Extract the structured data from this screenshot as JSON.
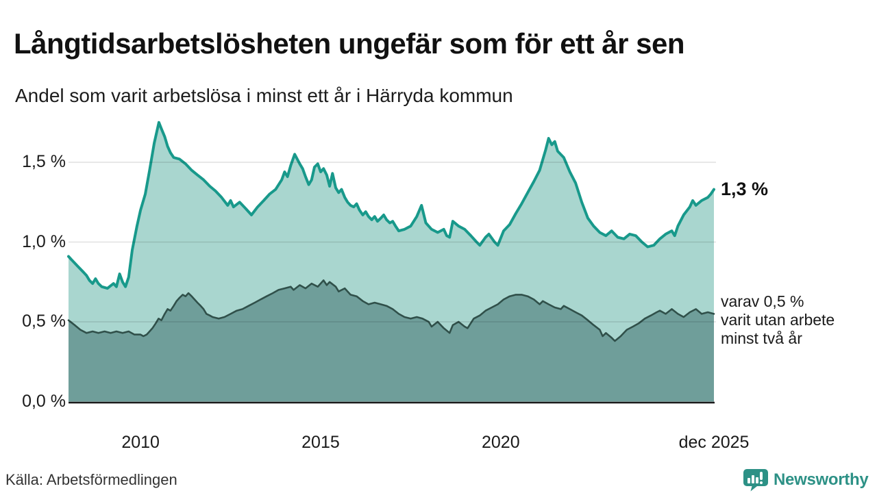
{
  "header": {
    "title": "Långtidsarbetslösheten ungefär som för ett år sen",
    "subtitle": "Andel som varit arbetslösa i minst ett år i Härryda kommun"
  },
  "annotations": {
    "latest_value": "1,3 %",
    "secondary_lines": [
      "varav 0,5 %",
      "varit utan arbete",
      "minst två år"
    ]
  },
  "footer": {
    "source": "Källa: Arbetsförmedlingen",
    "brand": "Newsworthy",
    "brand_icon": "newsworthy-speech-bubble-bar-chart-icon"
  },
  "colors": {
    "series1_line": "#18998b",
    "series1_fill": "#a9d6cf",
    "series2_line": "#30504a",
    "series2_fill": "#6f9e9a",
    "gridline": "rgba(0,0,0,0.12)",
    "baseline": "#1a1a1a",
    "brand_teal": "#2d9186",
    "text": "#111111"
  },
  "chart_data": {
    "type": "area",
    "title": "Långtidsarbetslösheten ungefär som för ett år sen",
    "subtitle": "Andel som varit arbetslösa i minst ett år i Härryda kommun",
    "unit": "%",
    "grid": "horizontal",
    "legend_position": "right-edge-annotations",
    "x_axis": {
      "range": [
        2008.0,
        2025.92
      ],
      "ticks": [
        {
          "year": 2010,
          "label": "2010"
        },
        {
          "year": 2015,
          "label": "2015"
        },
        {
          "year": 2020,
          "label": "2020"
        },
        {
          "year": 2025.92,
          "label": "dec 2025"
        }
      ]
    },
    "y_axis": {
      "range": [
        0,
        1.8
      ],
      "gridlines": [
        0.5,
        1.0,
        1.5
      ],
      "ticks": [
        {
          "value": 1.5,
          "label": "1,5 %"
        },
        {
          "value": 1.0,
          "label": "1,0 %"
        },
        {
          "value": 0.5,
          "label": "0,5 %"
        },
        {
          "value": 0.0,
          "label": "0,0 %"
        }
      ]
    },
    "series": [
      {
        "name": "Andel arbetslösa minst ett år",
        "end_label": "1,3 %",
        "color": "#18998b",
        "fill": "#a9d6cf",
        "points": [
          [
            2008.0,
            0.91
          ],
          [
            2008.08,
            0.89
          ],
          [
            2008.25,
            0.85
          ],
          [
            2008.42,
            0.81
          ],
          [
            2008.5,
            0.79
          ],
          [
            2008.58,
            0.76
          ],
          [
            2008.67,
            0.74
          ],
          [
            2008.75,
            0.77
          ],
          [
            2008.83,
            0.74
          ],
          [
            2008.92,
            0.72
          ],
          [
            2009.08,
            0.71
          ],
          [
            2009.25,
            0.74
          ],
          [
            2009.33,
            0.72
          ],
          [
            2009.42,
            0.8
          ],
          [
            2009.5,
            0.75
          ],
          [
            2009.58,
            0.72
          ],
          [
            2009.67,
            0.78
          ],
          [
            2009.77,
            0.95
          ],
          [
            2009.9,
            1.1
          ],
          [
            2010.0,
            1.2
          ],
          [
            2010.13,
            1.3
          ],
          [
            2010.25,
            1.45
          ],
          [
            2010.38,
            1.62
          ],
          [
            2010.51,
            1.75
          ],
          [
            2010.58,
            1.71
          ],
          [
            2010.67,
            1.66
          ],
          [
            2010.75,
            1.6
          ],
          [
            2010.83,
            1.56
          ],
          [
            2010.92,
            1.53
          ],
          [
            2011.08,
            1.52
          ],
          [
            2011.25,
            1.49
          ],
          [
            2011.42,
            1.45
          ],
          [
            2011.58,
            1.42
          ],
          [
            2011.75,
            1.39
          ],
          [
            2011.92,
            1.35
          ],
          [
            2012.08,
            1.32
          ],
          [
            2012.25,
            1.28
          ],
          [
            2012.42,
            1.23
          ],
          [
            2012.5,
            1.26
          ],
          [
            2012.58,
            1.22
          ],
          [
            2012.75,
            1.25
          ],
          [
            2012.92,
            1.21
          ],
          [
            2013.08,
            1.17
          ],
          [
            2013.25,
            1.22
          ],
          [
            2013.42,
            1.26
          ],
          [
            2013.58,
            1.3
          ],
          [
            2013.75,
            1.33
          ],
          [
            2013.92,
            1.39
          ],
          [
            2014.0,
            1.44
          ],
          [
            2014.08,
            1.41
          ],
          [
            2014.17,
            1.48
          ],
          [
            2014.28,
            1.55
          ],
          [
            2014.42,
            1.49
          ],
          [
            2014.5,
            1.46
          ],
          [
            2014.58,
            1.41
          ],
          [
            2014.67,
            1.36
          ],
          [
            2014.75,
            1.39
          ],
          [
            2014.83,
            1.47
          ],
          [
            2014.92,
            1.49
          ],
          [
            2015.0,
            1.44
          ],
          [
            2015.08,
            1.46
          ],
          [
            2015.17,
            1.42
          ],
          [
            2015.25,
            1.35
          ],
          [
            2015.33,
            1.43
          ],
          [
            2015.42,
            1.34
          ],
          [
            2015.5,
            1.31
          ],
          [
            2015.58,
            1.33
          ],
          [
            2015.67,
            1.28
          ],
          [
            2015.75,
            1.25
          ],
          [
            2015.83,
            1.23
          ],
          [
            2015.92,
            1.22
          ],
          [
            2016.0,
            1.24
          ],
          [
            2016.08,
            1.2
          ],
          [
            2016.17,
            1.17
          ],
          [
            2016.25,
            1.19
          ],
          [
            2016.33,
            1.16
          ],
          [
            2016.42,
            1.14
          ],
          [
            2016.5,
            1.16
          ],
          [
            2016.58,
            1.13
          ],
          [
            2016.67,
            1.15
          ],
          [
            2016.75,
            1.17
          ],
          [
            2016.83,
            1.14
          ],
          [
            2016.92,
            1.12
          ],
          [
            2017.0,
            1.13
          ],
          [
            2017.08,
            1.1
          ],
          [
            2017.17,
            1.07
          ],
          [
            2017.33,
            1.08
          ],
          [
            2017.5,
            1.1
          ],
          [
            2017.67,
            1.16
          ],
          [
            2017.8,
            1.23
          ],
          [
            2017.92,
            1.12
          ],
          [
            2018.08,
            1.08
          ],
          [
            2018.25,
            1.06
          ],
          [
            2018.42,
            1.08
          ],
          [
            2018.5,
            1.04
          ],
          [
            2018.58,
            1.03
          ],
          [
            2018.67,
            1.13
          ],
          [
            2018.83,
            1.1
          ],
          [
            2019.0,
            1.08
          ],
          [
            2019.17,
            1.04
          ],
          [
            2019.33,
            1.0
          ],
          [
            2019.42,
            0.98
          ],
          [
            2019.58,
            1.03
          ],
          [
            2019.67,
            1.05
          ],
          [
            2019.83,
            1.0
          ],
          [
            2019.92,
            0.98
          ],
          [
            2020.08,
            1.07
          ],
          [
            2020.25,
            1.11
          ],
          [
            2020.42,
            1.18
          ],
          [
            2020.58,
            1.24
          ],
          [
            2020.75,
            1.31
          ],
          [
            2020.92,
            1.38
          ],
          [
            2021.08,
            1.45
          ],
          [
            2021.25,
            1.58
          ],
          [
            2021.33,
            1.65
          ],
          [
            2021.42,
            1.61
          ],
          [
            2021.5,
            1.63
          ],
          [
            2021.58,
            1.57
          ],
          [
            2021.75,
            1.53
          ],
          [
            2021.92,
            1.44
          ],
          [
            2022.08,
            1.37
          ],
          [
            2022.25,
            1.25
          ],
          [
            2022.42,
            1.15
          ],
          [
            2022.58,
            1.1
          ],
          [
            2022.75,
            1.06
          ],
          [
            2022.92,
            1.04
          ],
          [
            2023.08,
            1.07
          ],
          [
            2023.25,
            1.03
          ],
          [
            2023.42,
            1.02
          ],
          [
            2023.58,
            1.05
          ],
          [
            2023.75,
            1.04
          ],
          [
            2023.92,
            1.0
          ],
          [
            2024.08,
            0.97
          ],
          [
            2024.25,
            0.98
          ],
          [
            2024.42,
            1.02
          ],
          [
            2024.58,
            1.05
          ],
          [
            2024.75,
            1.07
          ],
          [
            2024.83,
            1.04
          ],
          [
            2024.92,
            1.1
          ],
          [
            2025.08,
            1.17
          ],
          [
            2025.25,
            1.22
          ],
          [
            2025.33,
            1.26
          ],
          [
            2025.42,
            1.23
          ],
          [
            2025.58,
            1.26
          ],
          [
            2025.75,
            1.28
          ],
          [
            2025.83,
            1.3
          ],
          [
            2025.92,
            1.33
          ]
        ]
      },
      {
        "name": "varav arbetslösa minst två år",
        "end_label": "varav 0,5 % varit utan arbete minst två år",
        "color": "#30504a",
        "fill": "#6f9e9a",
        "points": [
          [
            2008.0,
            0.51
          ],
          [
            2008.17,
            0.48
          ],
          [
            2008.33,
            0.45
          ],
          [
            2008.5,
            0.43
          ],
          [
            2008.67,
            0.44
          ],
          [
            2008.83,
            0.43
          ],
          [
            2009.0,
            0.44
          ],
          [
            2009.17,
            0.43
          ],
          [
            2009.33,
            0.44
          ],
          [
            2009.5,
            0.43
          ],
          [
            2009.67,
            0.44
          ],
          [
            2009.83,
            0.42
          ],
          [
            2010.0,
            0.42
          ],
          [
            2010.08,
            0.41
          ],
          [
            2010.17,
            0.42
          ],
          [
            2010.25,
            0.44
          ],
          [
            2010.33,
            0.46
          ],
          [
            2010.42,
            0.49
          ],
          [
            2010.5,
            0.52
          ],
          [
            2010.58,
            0.51
          ],
          [
            2010.67,
            0.55
          ],
          [
            2010.75,
            0.58
          ],
          [
            2010.83,
            0.57
          ],
          [
            2010.92,
            0.6
          ],
          [
            2011.0,
            0.63
          ],
          [
            2011.08,
            0.65
          ],
          [
            2011.17,
            0.67
          ],
          [
            2011.25,
            0.66
          ],
          [
            2011.33,
            0.68
          ],
          [
            2011.42,
            0.66
          ],
          [
            2011.5,
            0.64
          ],
          [
            2011.58,
            0.62
          ],
          [
            2011.67,
            0.6
          ],
          [
            2011.75,
            0.58
          ],
          [
            2011.83,
            0.55
          ],
          [
            2011.92,
            0.54
          ],
          [
            2012.0,
            0.53
          ],
          [
            2012.17,
            0.52
          ],
          [
            2012.33,
            0.53
          ],
          [
            2012.5,
            0.55
          ],
          [
            2012.67,
            0.57
          ],
          [
            2012.83,
            0.58
          ],
          [
            2013.0,
            0.6
          ],
          [
            2013.17,
            0.62
          ],
          [
            2013.33,
            0.64
          ],
          [
            2013.5,
            0.66
          ],
          [
            2013.67,
            0.68
          ],
          [
            2013.83,
            0.7
          ],
          [
            2014.0,
            0.71
          ],
          [
            2014.17,
            0.72
          ],
          [
            2014.25,
            0.7
          ],
          [
            2014.42,
            0.73
          ],
          [
            2014.58,
            0.71
          ],
          [
            2014.75,
            0.74
          ],
          [
            2014.92,
            0.72
          ],
          [
            2015.08,
            0.76
          ],
          [
            2015.17,
            0.73
          ],
          [
            2015.25,
            0.75
          ],
          [
            2015.42,
            0.72
          ],
          [
            2015.5,
            0.69
          ],
          [
            2015.67,
            0.71
          ],
          [
            2015.83,
            0.67
          ],
          [
            2016.0,
            0.66
          ],
          [
            2016.17,
            0.63
          ],
          [
            2016.33,
            0.61
          ],
          [
            2016.5,
            0.62
          ],
          [
            2016.67,
            0.61
          ],
          [
            2016.83,
            0.6
          ],
          [
            2017.0,
            0.58
          ],
          [
            2017.17,
            0.55
          ],
          [
            2017.33,
            0.53
          ],
          [
            2017.5,
            0.52
          ],
          [
            2017.67,
            0.53
          ],
          [
            2017.83,
            0.52
          ],
          [
            2018.0,
            0.5
          ],
          [
            2018.08,
            0.47
          ],
          [
            2018.25,
            0.5
          ],
          [
            2018.42,
            0.46
          ],
          [
            2018.58,
            0.43
          ],
          [
            2018.67,
            0.48
          ],
          [
            2018.83,
            0.5
          ],
          [
            2019.0,
            0.47
          ],
          [
            2019.08,
            0.46
          ],
          [
            2019.25,
            0.52
          ],
          [
            2019.42,
            0.54
          ],
          [
            2019.58,
            0.57
          ],
          [
            2019.75,
            0.59
          ],
          [
            2019.92,
            0.61
          ],
          [
            2020.08,
            0.64
          ],
          [
            2020.25,
            0.66
          ],
          [
            2020.42,
            0.67
          ],
          [
            2020.58,
            0.67
          ],
          [
            2020.75,
            0.66
          ],
          [
            2020.92,
            0.64
          ],
          [
            2021.08,
            0.61
          ],
          [
            2021.17,
            0.63
          ],
          [
            2021.33,
            0.61
          ],
          [
            2021.5,
            0.59
          ],
          [
            2021.67,
            0.58
          ],
          [
            2021.75,
            0.6
          ],
          [
            2021.92,
            0.58
          ],
          [
            2022.08,
            0.56
          ],
          [
            2022.25,
            0.54
          ],
          [
            2022.42,
            0.51
          ],
          [
            2022.58,
            0.48
          ],
          [
            2022.75,
            0.45
          ],
          [
            2022.83,
            0.41
          ],
          [
            2022.92,
            0.43
          ],
          [
            2023.08,
            0.4
          ],
          [
            2023.17,
            0.38
          ],
          [
            2023.33,
            0.41
          ],
          [
            2023.5,
            0.45
          ],
          [
            2023.67,
            0.47
          ],
          [
            2023.83,
            0.49
          ],
          [
            2024.0,
            0.52
          ],
          [
            2024.17,
            0.54
          ],
          [
            2024.33,
            0.56
          ],
          [
            2024.42,
            0.57
          ],
          [
            2024.58,
            0.55
          ],
          [
            2024.75,
            0.58
          ],
          [
            2024.92,
            0.55
          ],
          [
            2025.08,
            0.53
          ],
          [
            2025.25,
            0.56
          ],
          [
            2025.42,
            0.58
          ],
          [
            2025.58,
            0.55
          ],
          [
            2025.75,
            0.56
          ],
          [
            2025.92,
            0.55
          ]
        ]
      }
    ]
  }
}
